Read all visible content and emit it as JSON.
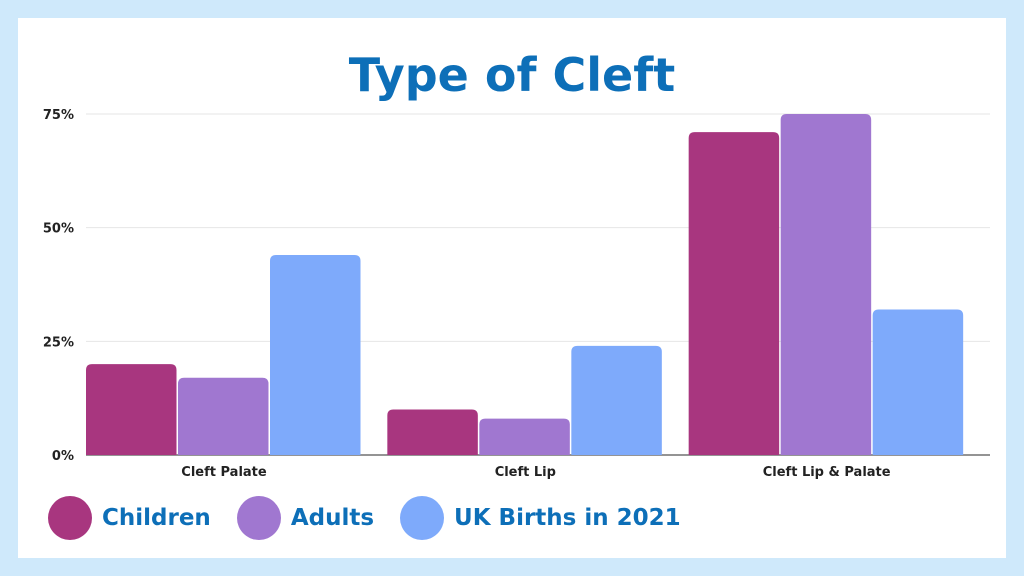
{
  "chart_data": {
    "type": "bar",
    "title": "Type of Cleft",
    "categories": [
      "Cleft Palate",
      "Cleft Lip",
      "Cleft Lip & Palate"
    ],
    "series": [
      {
        "name": "Children",
        "color": "#a8367f",
        "values": [
          20,
          10,
          71
        ]
      },
      {
        "name": "Adults",
        "color": "#a077d0",
        "values": [
          17,
          8,
          75
        ]
      },
      {
        "name": "UK Births in 2021",
        "color": "#7eaafb",
        "values": [
          44,
          24,
          32
        ]
      }
    ],
    "ylim": [
      0,
      75
    ],
    "yticks": [
      {
        "value": 0,
        "label": "0%"
      },
      {
        "value": 25,
        "label": "25%"
      },
      {
        "value": 50,
        "label": "50%"
      },
      {
        "value": 75,
        "label": "75%"
      }
    ],
    "grid": true,
    "legend_position": "bottom-left",
    "xlabel": "",
    "ylabel": ""
  },
  "colors": {
    "background": "#cfe9fb",
    "card": "#ffffff",
    "title": "#0d6fb8"
  }
}
